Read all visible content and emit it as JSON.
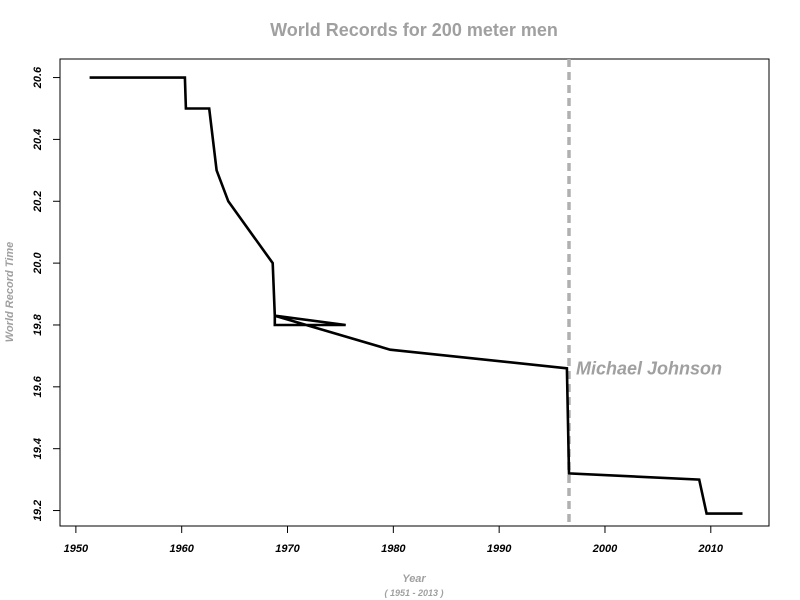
{
  "chart_data": {
    "type": "line",
    "title": "World Records for 200 meter men",
    "xlabel": "Year",
    "xlabel_sub": "( 1951 - 2013 )",
    "ylabel": "World Record Time",
    "xlim": [
      1948.5,
      2015.5
    ],
    "ylim": [
      19.15,
      20.66
    ],
    "xticks": [
      1950,
      1960,
      1970,
      1980,
      1990,
      2000,
      2010
    ],
    "yticks": [
      19.2,
      19.4,
      19.6,
      19.8,
      20.0,
      20.2,
      20.4,
      20.6
    ],
    "ytick_labels": [
      "19.2",
      "19.4",
      "19.6",
      "19.8",
      "20.0",
      "20.2",
      "20.4",
      "20.6"
    ],
    "series": [
      {
        "color": "#000000",
        "x": [
          1951.3,
          1960.3,
          1960.4,
          1962.6,
          1963.3,
          1964.4,
          1968.6,
          1968.8,
          1968.8,
          1975.5,
          1968.8,
          1979.7,
          1996.4,
          1996.6,
          2008.9,
          2009.6,
          2013.0
        ],
        "y": [
          20.6,
          20.6,
          20.5,
          20.5,
          20.3,
          20.2,
          20.0,
          19.83,
          19.8,
          19.8,
          19.83,
          19.72,
          19.66,
          19.32,
          19.3,
          19.19,
          19.19
        ]
      }
    ],
    "annotations": [
      {
        "type": "vline",
        "x": 1996.6,
        "style": "dashed",
        "color": "#b0b0b0",
        "label": "Michael Johnson"
      }
    ],
    "grid": false,
    "legend": "none"
  }
}
